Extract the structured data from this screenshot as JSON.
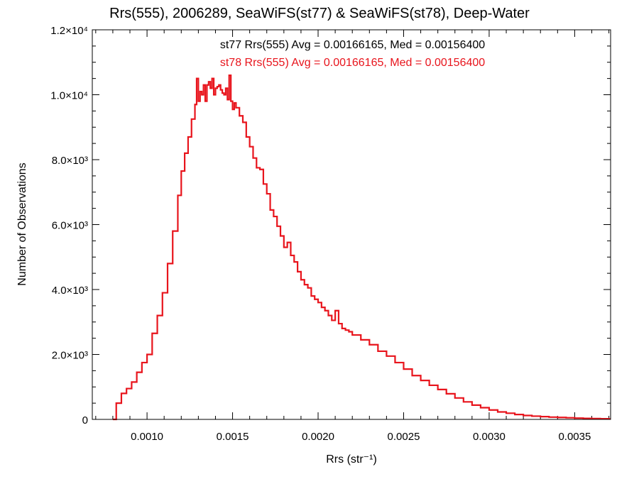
{
  "chart_data": {
    "type": "histogram-step",
    "title": "Rrs(555), 2006289, SeaWiFS(st77) & SeaWiFS(st78), Deep-Water",
    "xlabel": "Rrs (str⁻¹)",
    "ylabel": "Number of Observations",
    "xlim": [
      0.00068,
      0.00371
    ],
    "ylim": [
      0,
      12000
    ],
    "x_ticks": [
      0.001,
      0.0015,
      0.002,
      0.0025,
      0.003,
      0.0035
    ],
    "x_tick_labels": [
      "0.0010",
      "0.0015",
      "0.0020",
      "0.0025",
      "0.0030",
      "0.0035"
    ],
    "y_ticks": [
      0,
      2000,
      4000,
      6000,
      8000,
      10000,
      12000
    ],
    "y_tick_labels": [
      "0",
      "2.0×10³",
      "4.0×10³",
      "6.0×10³",
      "8.0×10³",
      "1.0×10⁴",
      "1.2×10⁴"
    ],
    "annotations": [
      {
        "text": "st77 Rrs(555) Avg = 0.00166165, Med = 0.00156400",
        "color": "#000000"
      },
      {
        "text": "st78 Rrs(555) Avg = 0.00166165, Med = 0.00156400",
        "color": "#e8141c"
      }
    ],
    "series": [
      {
        "name": "st78",
        "color": "#e8141c",
        "x": [
          0.0008,
          0.00082,
          0.00085,
          0.00088,
          0.00091,
          0.00094,
          0.00097,
          0.001,
          0.00103,
          0.00106,
          0.00109,
          0.00112,
          0.00115,
          0.00118,
          0.0012,
          0.00122,
          0.00124,
          0.00126,
          0.00128,
          0.00129,
          0.0013,
          0.00131,
          0.00132,
          0.00133,
          0.00134,
          0.00135,
          0.00136,
          0.00137,
          0.00138,
          0.00139,
          0.0014,
          0.00141,
          0.00142,
          0.00143,
          0.00144,
          0.00145,
          0.00146,
          0.00147,
          0.00148,
          0.00149,
          0.0015,
          0.00151,
          0.00152,
          0.00154,
          0.00156,
          0.00158,
          0.0016,
          0.00162,
          0.00164,
          0.00166,
          0.00168,
          0.0017,
          0.00172,
          0.00174,
          0.00176,
          0.00178,
          0.0018,
          0.00182,
          0.00184,
          0.00186,
          0.00188,
          0.0019,
          0.00192,
          0.00194,
          0.00196,
          0.00198,
          0.002,
          0.00202,
          0.00204,
          0.00206,
          0.00208,
          0.0021,
          0.00212,
          0.00214,
          0.00216,
          0.00218,
          0.0022,
          0.00225,
          0.0023,
          0.00235,
          0.0024,
          0.00245,
          0.0025,
          0.00255,
          0.0026,
          0.00265,
          0.0027,
          0.00275,
          0.0028,
          0.00285,
          0.0029,
          0.00295,
          0.003,
          0.00305,
          0.0031,
          0.00315,
          0.0032,
          0.00325,
          0.0033,
          0.00335,
          0.0034,
          0.00345,
          0.0035,
          0.00355,
          0.0036,
          0.00365,
          0.0037
        ],
        "values": [
          0,
          500,
          800,
          950,
          1150,
          1450,
          1750,
          2000,
          2650,
          3200,
          3900,
          4800,
          5800,
          6900,
          7650,
          8200,
          8700,
          9250,
          9700,
          10500,
          9800,
          10100,
          10000,
          10300,
          9800,
          10300,
          10400,
          10200,
          10500,
          10000,
          10200,
          10250,
          10300,
          10150,
          10050,
          10000,
          10200,
          9850,
          10600,
          9800,
          9550,
          9750,
          9600,
          9350,
          9150,
          8700,
          8400,
          8050,
          7750,
          7700,
          7250,
          6950,
          6450,
          6250,
          5950,
          5650,
          5300,
          5450,
          5050,
          4850,
          4550,
          4300,
          4150,
          4050,
          3800,
          3700,
          3600,
          3450,
          3350,
          3200,
          3050,
          3350,
          2950,
          2800,
          2750,
          2700,
          2600,
          2450,
          2300,
          2100,
          1950,
          1750,
          1550,
          1350,
          1200,
          1050,
          920,
          790,
          660,
          540,
          440,
          360,
          290,
          230,
          190,
          150,
          120,
          100,
          85,
          70,
          60,
          50,
          40,
          30,
          25,
          20,
          12
        ]
      }
    ]
  }
}
